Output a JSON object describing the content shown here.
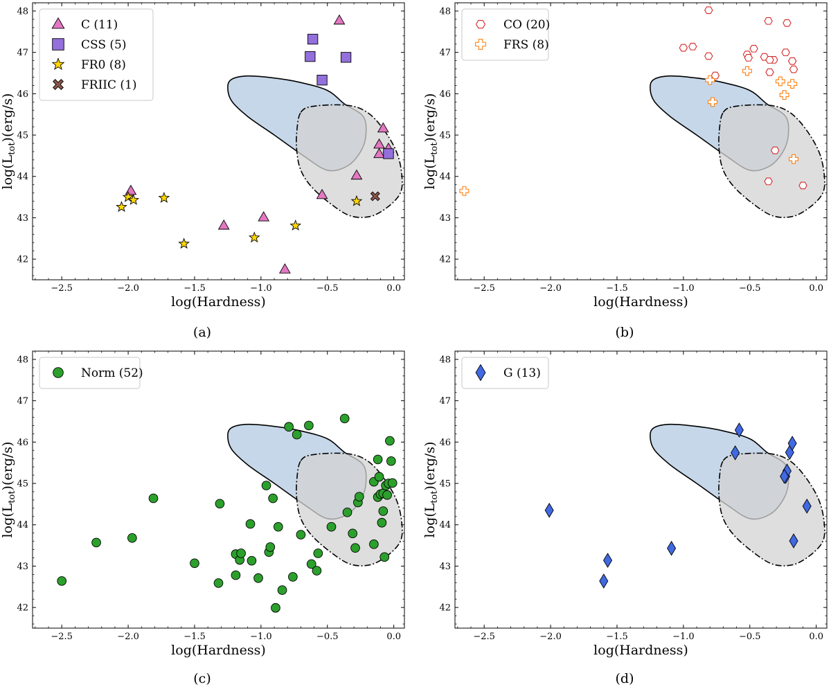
{
  "figure_title": "",
  "chart_data": [
    {
      "type": "scatter",
      "panel_caption": "(a)",
      "xlabel": "log(Hardness)",
      "ylabel_main": "log(L",
      "ylabel_sub": "tot",
      "ylabel_tail": ")(erg/s)",
      "xlim": [
        -2.72,
        0.08
      ],
      "ylim": [
        41.5,
        48.2
      ],
      "xticks": [
        "−2.5",
        "−2.0",
        "−1.5",
        "−1.0",
        "−0.5",
        "0.0"
      ],
      "yticks": [
        "42",
        "43",
        "44",
        "45",
        "46",
        "47",
        "48"
      ],
      "legend_position": "upper-left",
      "series": [
        {
          "name": "C (11)",
          "marker": "triangle",
          "color": "#e377c2",
          "filled": true,
          "x": [
            -1.98,
            -1.28,
            -0.98,
            -0.82,
            -0.54,
            -0.41,
            -0.28,
            -0.11,
            -0.11,
            -0.08,
            -0.04
          ],
          "y": [
            43.65,
            42.81,
            43.01,
            41.75,
            43.55,
            47.77,
            44.02,
            44.77,
            44.54,
            45.16,
            44.67
          ]
        },
        {
          "name": "CSS (5)",
          "marker": "square",
          "color": "#9370db",
          "filled": true,
          "x": [
            -0.63,
            -0.61,
            -0.54,
            -0.36,
            -0.04
          ],
          "y": [
            46.9,
            47.32,
            46.33,
            46.88,
            44.55
          ]
        },
        {
          "name": "FR0 (8)",
          "marker": "star",
          "color": "#ffd700",
          "filled": true,
          "x": [
            -2.05,
            -2.0,
            -1.96,
            -1.73,
            -1.58,
            -1.05,
            -0.74,
            -0.28
          ],
          "y": [
            43.26,
            43.5,
            43.43,
            43.48,
            42.37,
            42.52,
            42.81,
            43.4
          ]
        },
        {
          "name": "FRIIC (1)",
          "marker": "x",
          "color": "#8c564b",
          "filled": true,
          "x": [
            -0.14
          ],
          "y": [
            43.52
          ]
        }
      ]
    },
    {
      "type": "scatter",
      "panel_caption": "(b)",
      "xlabel": "log(Hardness)",
      "ylabel_main": "log(L",
      "ylabel_sub": "tot",
      "ylabel_tail": ")(erg/s)",
      "xlim": [
        -2.72,
        0.08
      ],
      "ylim": [
        41.5,
        48.2
      ],
      "xticks": [
        "−2.5",
        "−2.0",
        "−1.5",
        "−1.0",
        "−0.5",
        "0.0"
      ],
      "yticks": [
        "42",
        "43",
        "44",
        "45",
        "46",
        "47",
        "48"
      ],
      "legend_position": "upper-left",
      "series": [
        {
          "name": "CO (20)",
          "marker": "hexagon",
          "color": "#d62728",
          "filled": false,
          "x": [
            -0.81,
            -1.0,
            -0.93,
            -0.81,
            -0.76,
            -0.52,
            -0.51,
            -0.47,
            -0.39,
            -0.36,
            -0.35,
            -0.32,
            -0.23,
            -0.22,
            -0.18,
            -0.17,
            -0.35,
            -0.31,
            -0.36,
            -0.1
          ],
          "y": [
            48.02,
            47.11,
            47.14,
            46.91,
            46.44,
            46.95,
            46.87,
            47.09,
            46.89,
            47.76,
            46.52,
            46.82,
            47.0,
            47.71,
            46.79,
            46.59,
            46.82,
            44.63,
            43.88,
            43.78
          ]
        },
        {
          "name": "FRS (8)",
          "marker": "plus",
          "color": "#ff7f0e",
          "filled": false,
          "x": [
            -2.65,
            -0.8,
            -0.78,
            -0.52,
            -0.27,
            -0.24,
            -0.18,
            -0.17
          ],
          "y": [
            43.65,
            46.33,
            45.8,
            46.55,
            46.3,
            45.97,
            46.24,
            44.42
          ]
        }
      ]
    },
    {
      "type": "scatter",
      "panel_caption": "(c)",
      "xlabel": "log(Hardness)",
      "ylabel_main": "log(L",
      "ylabel_sub": "tot",
      "ylabel_tail": ")(erg/s)",
      "xlim": [
        -2.72,
        0.08
      ],
      "ylim": [
        41.5,
        48.2
      ],
      "xticks": [
        "−2.5",
        "−2.0",
        "−1.5",
        "−1.0",
        "−0.5",
        "0.0"
      ],
      "yticks": [
        "42",
        "43",
        "44",
        "45",
        "46",
        "47",
        "48"
      ],
      "legend_position": "upper-left",
      "series": [
        {
          "name": "Norm (52)",
          "marker": "circle",
          "color": "#2ca02c",
          "filled": true,
          "x": [
            -2.5,
            -2.24,
            -1.97,
            -1.81,
            -1.5,
            -1.32,
            -1.31,
            -1.19,
            -1.19,
            -1.16,
            -1.15,
            -1.08,
            -1.07,
            -1.02,
            -0.96,
            -0.94,
            -0.93,
            -0.91,
            -0.89,
            -0.87,
            -0.84,
            -0.79,
            -0.76,
            -0.73,
            -0.7,
            -0.64,
            -0.62,
            -0.58,
            -0.57,
            -0.47,
            -0.37,
            -0.35,
            -0.31,
            -0.29,
            -0.27,
            -0.26,
            -0.15,
            -0.15,
            -0.12,
            -0.12,
            -0.11,
            -0.1,
            -0.09,
            -0.08,
            -0.08,
            -0.07,
            -0.06,
            -0.05,
            -0.04,
            -0.03,
            -0.02,
            -0.01
          ],
          "y": [
            42.64,
            43.57,
            43.68,
            44.64,
            43.07,
            42.59,
            44.51,
            42.78,
            43.29,
            43.15,
            43.31,
            44.02,
            43.13,
            42.71,
            44.95,
            43.34,
            43.46,
            44.64,
            41.99,
            43.95,
            42.42,
            46.37,
            42.74,
            46.18,
            43.76,
            46.4,
            43.05,
            42.89,
            43.31,
            43.95,
            46.57,
            44.3,
            43.79,
            43.44,
            44.54,
            44.68,
            45.04,
            43.53,
            45.58,
            44.67,
            45.16,
            44.74,
            44.05,
            44.33,
            44.76,
            43.22,
            44.95,
            44.72,
            45.0,
            46.03,
            45.54,
            45.01
          ]
        }
      ]
    },
    {
      "type": "scatter",
      "panel_caption": "(d)",
      "xlabel": "log(Hardness)",
      "ylabel_main": "log(L",
      "ylabel_sub": "tot",
      "ylabel_tail": ")(erg/s)",
      "xlim": [
        -2.72,
        0.08
      ],
      "ylim": [
        41.5,
        48.2
      ],
      "xticks": [
        "−2.5",
        "−2.0",
        "−1.5",
        "−1.0",
        "−0.5",
        "0.0"
      ],
      "yticks": [
        "42",
        "43",
        "44",
        "45",
        "46",
        "47",
        "48"
      ],
      "legend_position": "upper-left",
      "series": [
        {
          "name": "G (13)",
          "marker": "diamond",
          "color": "#4169e1",
          "filled": true,
          "x": [
            -2.01,
            -1.6,
            -1.57,
            -1.09,
            -0.61,
            -0.58,
            -0.23,
            -0.22,
            -0.2,
            -0.18,
            -0.17,
            -0.07,
            -0.24
          ],
          "y": [
            44.35,
            42.64,
            43.14,
            43.43,
            45.74,
            46.29,
            45.17,
            45.3,
            45.75,
            45.97,
            43.61,
            44.45,
            45.17
          ]
        }
      ]
    }
  ],
  "regions": [
    {
      "name": "blue-contour",
      "fill": "#b3c9e1",
      "stroke": "#000000",
      "style": "solid",
      "outline": [
        [
          -1.25,
          46.15
        ],
        [
          -1.22,
          46.35
        ],
        [
          -1.1,
          46.43
        ],
        [
          -0.9,
          46.38
        ],
        [
          -0.7,
          46.27
        ],
        [
          -0.5,
          46.08
        ],
        [
          -0.37,
          45.75
        ],
        [
          -0.23,
          45.45
        ],
        [
          -0.21,
          45.0
        ],
        [
          -0.25,
          44.6
        ],
        [
          -0.35,
          44.25
        ],
        [
          -0.5,
          44.15
        ],
        [
          -0.68,
          44.5
        ],
        [
          -0.9,
          45.0
        ],
        [
          -1.1,
          45.45
        ],
        [
          -1.22,
          45.82
        ]
      ]
    },
    {
      "name": "grey-contour",
      "fill": "#d3d3d3",
      "stroke": "#000000",
      "style": "dashdot",
      "outline": [
        [
          -0.7,
          45.55
        ],
        [
          -0.6,
          45.7
        ],
        [
          -0.35,
          45.72
        ],
        [
          -0.2,
          45.55
        ],
        [
          -0.08,
          45.15
        ],
        [
          0.02,
          44.6
        ],
        [
          0.06,
          44.05
        ],
        [
          0.05,
          43.6
        ],
        [
          -0.05,
          43.25
        ],
        [
          -0.18,
          43.03
        ],
        [
          -0.33,
          43.05
        ],
        [
          -0.48,
          43.35
        ],
        [
          -0.62,
          43.75
        ],
        [
          -0.7,
          44.15
        ],
        [
          -0.73,
          44.6
        ],
        [
          -0.73,
          45.1
        ]
      ]
    }
  ]
}
